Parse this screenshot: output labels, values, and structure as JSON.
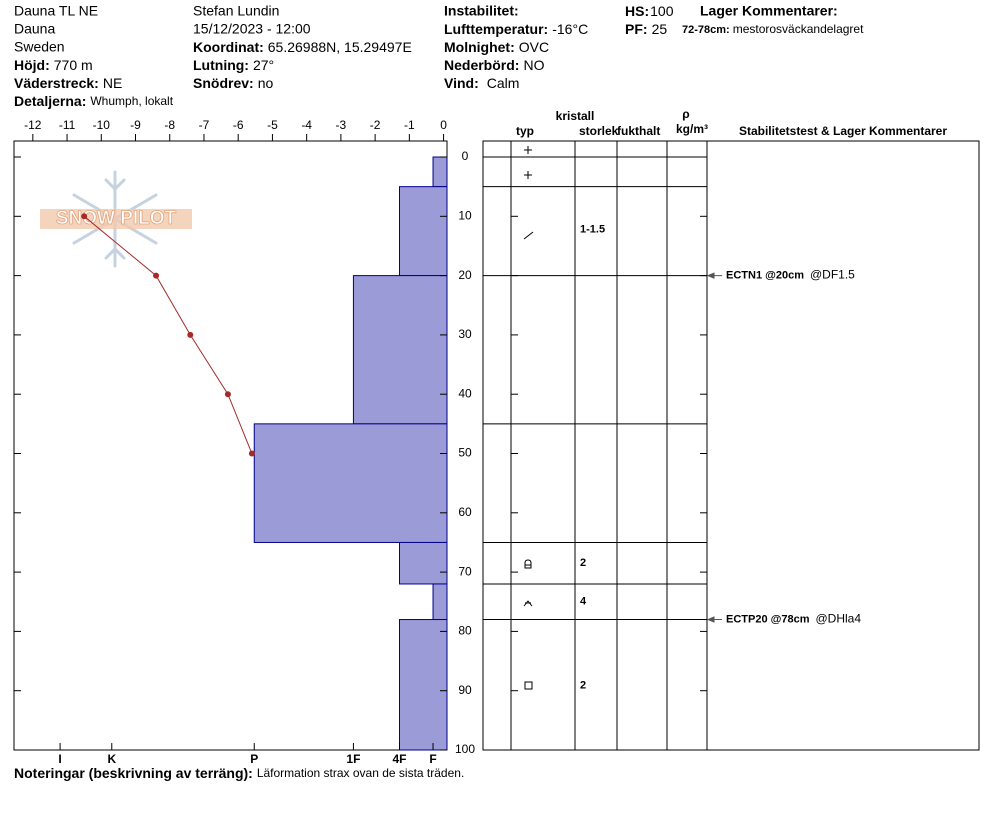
{
  "header": {
    "site": "Dauna TL NE",
    "location": "Dauna",
    "country": "Sweden",
    "elevation": {
      "label": "Höjd:",
      "value": "770 m"
    },
    "aspect": {
      "label": "Väderstreck:",
      "value": "NE"
    },
    "details": {
      "label": "Detaljerna:",
      "value": "Whumph, lokalt"
    },
    "observer": "Stefan Lundin",
    "datetime": "15/12/2023 - 12:00",
    "coordinates": {
      "label": "Koordinat:",
      "value": "65.26988N, 15.29497E"
    },
    "slope": {
      "label": "Lutning:",
      "value": "27°"
    },
    "wind_loading": {
      "label": "Snödrev:",
      "value": "no"
    },
    "instability": {
      "label": "Instabilitet:"
    },
    "air_temp": {
      "label": "Lufttemperatur:",
      "value": "-16°C"
    },
    "sky": {
      "label": "Molnighet:",
      "value": "OVC"
    },
    "precip": {
      "label": "Nederbörd:",
      "value": "NO"
    },
    "wind": {
      "label": "Vind:",
      "value": "Calm"
    },
    "hs": {
      "label": "HS:",
      "value": 100
    },
    "pf": {
      "label": "PF:",
      "value": 25
    },
    "layer_comments": {
      "label": "Lager Kommentarer:",
      "items": [
        {
          "range": "72-78cm:",
          "text": "mestorosväckandelagret"
        }
      ]
    }
  },
  "logo": "SNOW PILOT",
  "table_headers": {
    "crystal": "kristall",
    "type": "typ",
    "size": "storlek",
    "moisture": "fukthalt",
    "density_symbol": "ρ",
    "density_unit": "kg/m³",
    "stability": "Stabilitetstest & Lager Kommentarer"
  },
  "notes": {
    "label": "Noteringar (beskrivning av terräng):",
    "text": "Läformation strax ovan de sista träden."
  },
  "chart_data": {
    "type": "snow-profile",
    "xlim": [
      -12.55,
      0.1
    ],
    "xticks": [
      -12,
      -11,
      -10,
      -9,
      -8,
      -7,
      -6,
      -5,
      -4,
      -3,
      -2,
      -1,
      0
    ],
    "ylim": [
      -2.7,
      100
    ],
    "yticks": [
      0,
      10,
      20,
      30,
      40,
      50,
      60,
      70,
      80,
      90,
      100
    ],
    "hlim": [
      0,
      31
    ],
    "hticks": [
      {
        "value": 27.7,
        "label": "I"
      },
      {
        "value": 24,
        "label": "K"
      },
      {
        "value": 13.8,
        "label": "P"
      },
      {
        "value": 6.7,
        "label": "1F"
      },
      {
        "value": 3.4,
        "label": "4F"
      },
      {
        "value": 1,
        "label": "F"
      }
    ],
    "temperature": {
      "depths": [
        10,
        20,
        30,
        40,
        50
      ],
      "values": [
        -10.5,
        -8.4,
        -7.4,
        -6.3,
        -5.6
      ],
      "color": "#a52a2a"
    },
    "layers": {
      "boundaries": [
        0,
        5,
        20,
        45,
        65,
        72,
        78,
        100
      ],
      "hardness": [
        1,
        3.4,
        6.7,
        13.8,
        3.4,
        1,
        3.4
      ],
      "sizes": [
        null,
        "1-1.5",
        null,
        null,
        "2",
        "4",
        "2"
      ],
      "color": "#9b9bd8",
      "edge_color": "#00008b"
    },
    "tests": [
      {
        "depth": 20,
        "label": "ECTN1 @20cm",
        "comment": "@DF1.5"
      },
      {
        "depth": 78,
        "label": "ECTP20 @78cm",
        "comment": "@DHla4"
      }
    ]
  }
}
